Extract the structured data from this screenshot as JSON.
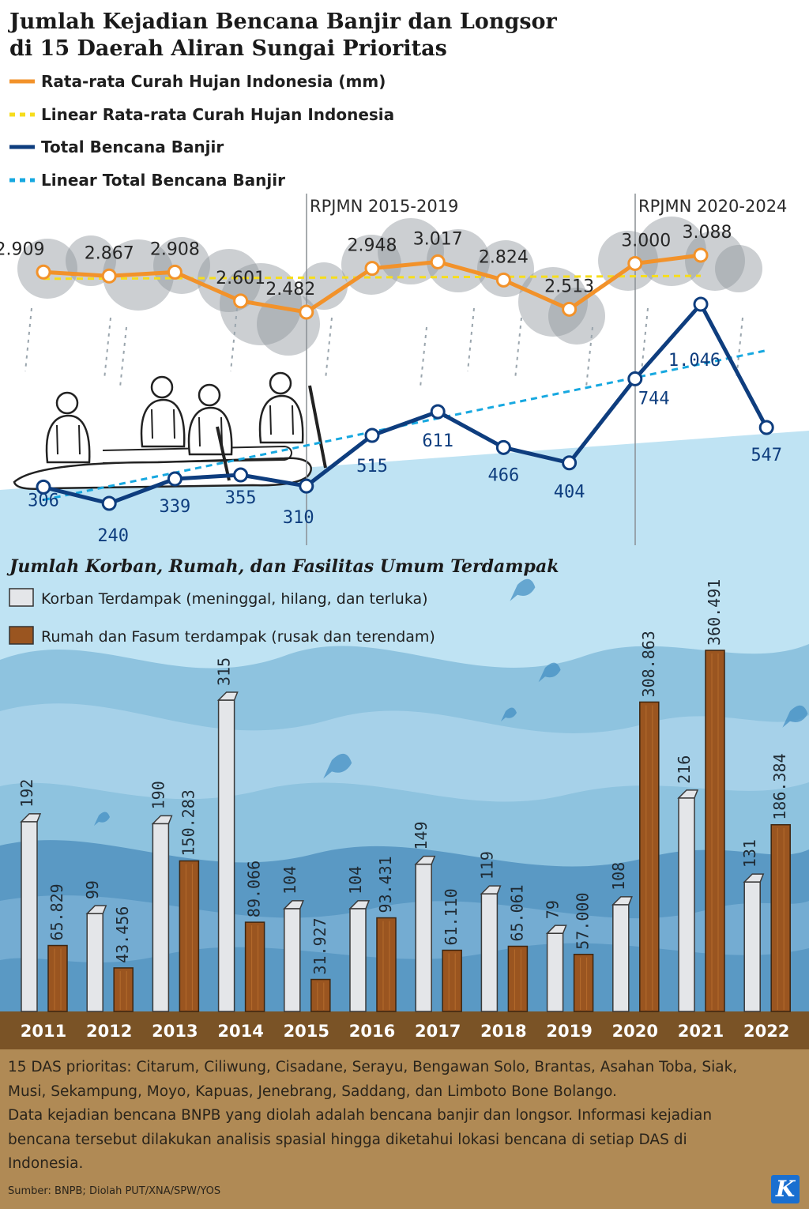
{
  "title_line1": "Jumlah Kejadian Bencana Banjir dan Longsor",
  "title_line2": "di 15 Daerah Aliran Sungai Prioritas",
  "subtitle2": "Jumlah Korban, Rumah, dan Fasilitas Umum Terdampak",
  "periods": [
    "RPJMN 2015-2019",
    "RPJMN 2020-2024"
  ],
  "colors": {
    "rain": "#f2922a",
    "rain_trend": "#f6dd1c",
    "flood": "#0e3d7e",
    "flood_trend": "#17a8e0",
    "victims_bar": "#e4e6e9",
    "houses_bar": "#9a5520",
    "water_light": "#bfe3f3",
    "water_mid": "#8ec3df",
    "water_dark": "#5a99c4",
    "ground": "#7a5326",
    "footer": "#b08a55",
    "axis_text": "#ffffff"
  },
  "footnote_line1": "15 DAS prioritas: Citarum, Ciliwung, Cisadane, Serayu, Bengawan Solo, Brantas, Asahan Toba, Siak,",
  "footnote_line2": "Musi, Sekampung, Moyo, Kapuas, Jenebrang, Saddang, dan Limboto Bone Bolango.",
  "footnote_line3": "Data kejadian bencana BNPB yang diolah adalah bencana banjir dan longsor. Informasi kejadian",
  "footnote_line4": "bencana tersebut dilakukan analisis spasial hingga diketahui lokasi bencana di setiap DAS di",
  "footnote_line5": "Indonesia.",
  "source": "Sumber: BNPB; Diolah PUT/XNA/SPW/YOS",
  "logo": "K",
  "chart_data": [
    {
      "type": "line",
      "title": "Jumlah Kejadian Bencana Banjir dan Longsor di 15 Daerah Aliran Sungai Prioritas",
      "x": [
        "2011",
        "2012",
        "2013",
        "2014",
        "2015",
        "2016",
        "2017",
        "2018",
        "2019",
        "2020",
        "2021",
        "2022"
      ],
      "legend_placement": "top-left",
      "grid": false,
      "series": [
        {
          "name": "Rata-rata Curah Hujan Indonesia (mm)",
          "values": [
            2909,
            2867,
            2908,
            2601,
            2482,
            2948,
            3017,
            2824,
            2513,
            3000,
            3088,
            null
          ],
          "labels": [
            "2.909",
            "2.867",
            "2.908",
            "2.601",
            "2.482",
            "2.948",
            "3.017",
            "2.824",
            "2.513",
            "3.000",
            "3.088",
            ""
          ]
        },
        {
          "name": "Linear Rata-rata Curah Hujan Indonesia",
          "values": [
            2837,
            2840,
            2843,
            2846,
            2849,
            2852,
            2855,
            2858,
            2861,
            2864,
            2868,
            null
          ],
          "labels": []
        },
        {
          "name": "Total Bencana Banjir",
          "values": [
            306,
            240,
            339,
            355,
            310,
            515,
            611,
            466,
            404,
            744,
            1046,
            547
          ],
          "labels": [
            "306",
            "240",
            "339",
            "355",
            "310",
            "515",
            "611",
            "466",
            "404",
            "744",
            "1.046",
            "547"
          ]
        },
        {
          "name": "Linear Total Bencana Banjir",
          "values": [
            254,
            309,
            364,
            419,
            474,
            529,
            584,
            639,
            694,
            749,
            804,
            859
          ],
          "labels": []
        }
      ]
    },
    {
      "type": "bar",
      "title": "Jumlah Korban, Rumah, dan Fasilitas Umum Terdampak",
      "categories": [
        "2011",
        "2012",
        "2013",
        "2014",
        "2015",
        "2016",
        "2017",
        "2018",
        "2019",
        "2020",
        "2021",
        "2022"
      ],
      "legend_placement": "top-left",
      "series": [
        {
          "name": "Korban Terdampak (meninggal, hilang, dan terluka)",
          "values": [
            192,
            99,
            190,
            315,
            104,
            104,
            149,
            119,
            79,
            108,
            216,
            131
          ],
          "labels": [
            "192",
            "99",
            "190",
            "315",
            "104",
            "104",
            "149",
            "119",
            "79",
            "108",
            "216",
            "131"
          ]
        },
        {
          "name": "Rumah dan Fasum terdampak (rusak dan terendam)",
          "values": [
            65829,
            43456,
            150283,
            89066,
            31927,
            93431,
            61110,
            65061,
            57000,
            308863,
            360491,
            186384
          ],
          "labels": [
            "65.829",
            "43.456",
            "150.283",
            "89.066",
            "31.927",
            "93.431",
            "61.110",
            "65.061",
            "57.000",
            "308.863",
            "360.491",
            "186.384"
          ]
        }
      ]
    }
  ]
}
